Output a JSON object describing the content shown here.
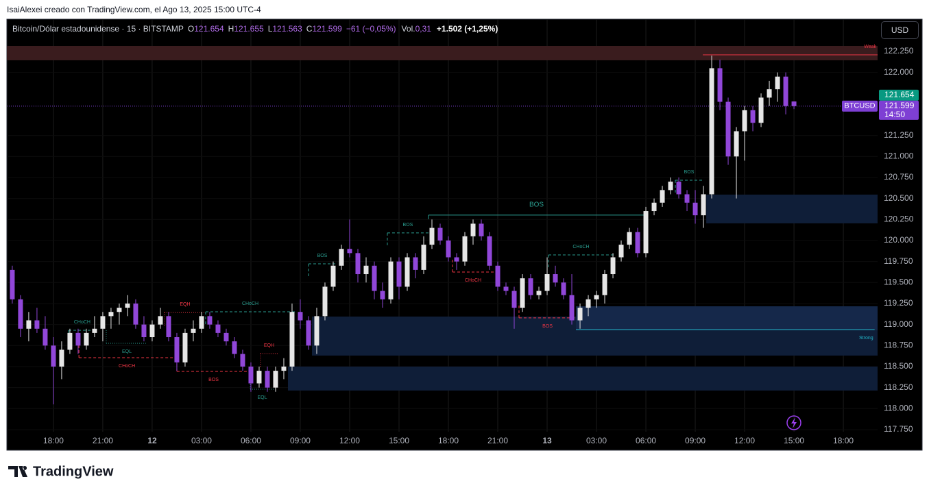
{
  "caption": "IsaiAlexei creado con TradingView.com, el Ago 13, 2025 15:00 UTC-4",
  "logo": "TradingView",
  "currency_button": "USD",
  "header": {
    "symbol": "Bitcoin/Dólar estadounidense · 15 · BITSTAMP",
    "open_label": "O",
    "open": "121.654",
    "high_label": "H",
    "high": "121.655",
    "low_label": "L",
    "low": "121.563",
    "close_label": "C",
    "close": "121.599",
    "change": "−61 (−0,05%)",
    "volume_label": "Vol.",
    "volume": "0,31",
    "indicator": "+1.502 (+1,25%)"
  },
  "chart_data": {
    "type": "candlestick",
    "up_color": "#e6e6e6",
    "down_color": "#9147d9",
    "x": [
      15.5,
      16,
      16.5,
      17,
      17.5,
      18,
      18.5,
      19,
      19.5,
      20,
      20.5,
      21,
      21.5,
      22,
      22.5,
      23,
      23.5,
      24,
      24.5,
      25,
      25.5,
      26,
      26.5,
      27,
      27.5,
      28,
      28.5,
      29,
      29.5,
      30,
      30.5,
      31,
      31.5,
      32,
      32.5,
      33,
      33.5,
      34,
      34.5,
      35,
      35.5,
      36,
      36.5,
      37,
      37.5,
      38,
      38.5,
      39,
      39.5,
      40,
      40.5,
      41,
      41.5,
      42,
      42.5,
      43,
      43.5,
      44,
      44.5,
      45,
      45.5,
      46,
      46.5,
      47,
      47.5,
      48,
      48.5,
      49,
      49.5,
      50,
      50.5,
      51,
      51.5,
      52,
      52.5,
      53,
      53.5,
      54,
      54.5,
      55,
      55.5,
      56,
      56.5,
      57,
      57.5,
      58,
      58.5,
      59,
      59.5,
      60,
      60.5,
      61,
      61.5,
      62,
      62.5,
      63
    ],
    "candles": [
      [
        119650,
        119700,
        119250,
        119300
      ],
      [
        119300,
        119350,
        118850,
        118950
      ],
      [
        118950,
        119150,
        118800,
        119050
      ],
      [
        119050,
        119200,
        118900,
        118950
      ],
      [
        118950,
        119100,
        118700,
        118750
      ],
      [
        118750,
        118850,
        118050,
        118500
      ],
      [
        118500,
        118800,
        118350,
        118700
      ],
      [
        118700,
        118950,
        118650,
        118900
      ],
      [
        118900,
        118950,
        118650,
        118750
      ],
      [
        118750,
        118950,
        118700,
        118900
      ],
      [
        118900,
        119100,
        118850,
        118950
      ],
      [
        118950,
        119150,
        118800,
        119100
      ],
      [
        119100,
        119200,
        118950,
        119150
      ],
      [
        119150,
        119250,
        119000,
        119200
      ],
      [
        119200,
        119350,
        119100,
        119250
      ],
      [
        119250,
        119300,
        118950,
        119000
      ],
      [
        119000,
        119100,
        118800,
        118850
      ],
      [
        118850,
        119050,
        118800,
        119000
      ],
      [
        119000,
        119200,
        118950,
        119100
      ],
      [
        119100,
        119150,
        118800,
        118850
      ],
      [
        118850,
        118900,
        118450,
        118550
      ],
      [
        118550,
        118950,
        118500,
        118900
      ],
      [
        118900,
        119050,
        118800,
        118950
      ],
      [
        118950,
        119150,
        118900,
        119100
      ],
      [
        119100,
        119150,
        118950,
        119000
      ],
      [
        119000,
        119050,
        118850,
        118900
      ],
      [
        118900,
        118950,
        118750,
        118800
      ],
      [
        118800,
        118850,
        118600,
        118650
      ],
      [
        118650,
        118700,
        118450,
        118500
      ],
      [
        118500,
        118550,
        118200,
        118300
      ],
      [
        118300,
        118500,
        118250,
        118450
      ],
      [
        118450,
        118500,
        118200,
        118250
      ],
      [
        118250,
        118500,
        118200,
        118450
      ],
      [
        118450,
        118600,
        118350,
        118500
      ],
      [
        118500,
        119250,
        118450,
        119150
      ],
      [
        119150,
        119300,
        118950,
        119050
      ],
      [
        119050,
        119100,
        118700,
        118750
      ],
      [
        118750,
        119200,
        118650,
        119100
      ],
      [
        119100,
        119500,
        119050,
        119450
      ],
      [
        119450,
        119750,
        119400,
        119700
      ],
      [
        119700,
        119950,
        119650,
        119900
      ],
      [
        119900,
        120250,
        119800,
        119850
      ],
      [
        119850,
        119900,
        119500,
        119600
      ],
      [
        119600,
        119800,
        119500,
        119700
      ],
      [
        119700,
        119750,
        119300,
        119400
      ],
      [
        119400,
        119500,
        119200,
        119300
      ],
      [
        119300,
        119800,
        119250,
        119750
      ],
      [
        119750,
        119800,
        119300,
        119450
      ],
      [
        119450,
        119850,
        119400,
        119800
      ],
      [
        119800,
        119850,
        119550,
        119650
      ],
      [
        119650,
        120050,
        119600,
        119950
      ],
      [
        119950,
        120250,
        119900,
        120150
      ],
      [
        120150,
        120200,
        119950,
        120000
      ],
      [
        120000,
        120050,
        119750,
        119800
      ],
      [
        119800,
        119850,
        119650,
        119750
      ],
      [
        119750,
        120100,
        119700,
        120050
      ],
      [
        120050,
        120250,
        119950,
        120200
      ],
      [
        120200,
        120250,
        120000,
        120050
      ],
      [
        120050,
        120100,
        119650,
        119700
      ],
      [
        119700,
        119750,
        119400,
        119450
      ],
      [
        119450,
        119500,
        119350,
        119400
      ],
      [
        119400,
        119450,
        118950,
        119200
      ],
      [
        119200,
        119600,
        119150,
        119550
      ],
      [
        119550,
        119600,
        119300,
        119350
      ],
      [
        119350,
        119450,
        119300,
        119400
      ],
      [
        119400,
        119800,
        119350,
        119600
      ],
      [
        119600,
        119700,
        119450,
        119500
      ],
      [
        119500,
        119550,
        119300,
        119350
      ],
      [
        119350,
        119600,
        119000,
        119050
      ],
      [
        119050,
        119250,
        118950,
        119200
      ],
      [
        119200,
        119350,
        119100,
        119300
      ],
      [
        119300,
        119400,
        119200,
        119350
      ],
      [
        119350,
        119650,
        119250,
        119600
      ],
      [
        119600,
        119850,
        119550,
        119800
      ],
      [
        119800,
        120000,
        119750,
        119950
      ],
      [
        119950,
        120150,
        119900,
        120100
      ],
      [
        120100,
        120150,
        119800,
        119850
      ],
      [
        119850,
        120400,
        119800,
        120350
      ],
      [
        120350,
        120500,
        120300,
        120450
      ],
      [
        120450,
        120650,
        120400,
        120600
      ],
      [
        120600,
        120750,
        120550,
        120700
      ],
      [
        120700,
        120750,
        120500,
        120550
      ],
      [
        120550,
        120600,
        120350,
        120450
      ],
      [
        120450,
        120600,
        120200,
        120300
      ],
      [
        120300,
        120650,
        120150,
        120550
      ],
      [
        120550,
        122200,
        120500,
        122050
      ],
      [
        122050,
        122150,
        121550,
        121650
      ],
      [
        121650,
        121700,
        120900,
        121000
      ],
      [
        121000,
        121350,
        120500,
        121300
      ],
      [
        121300,
        121600,
        120950,
        121550
      ],
      [
        121550,
        121600,
        121300,
        121400
      ],
      [
        121400,
        121750,
        121350,
        121700
      ],
      [
        121700,
        121900,
        121600,
        121800
      ],
      [
        121800,
        122000,
        121650,
        121950
      ],
      [
        121950,
        122000,
        121500,
        121600
      ],
      [
        121654,
        121655,
        121563,
        121599
      ]
    ],
    "xlim": [
      15.17,
      68.08
    ],
    "xticks": [
      {
        "value": 18,
        "label": "18:00"
      },
      {
        "value": 21,
        "label": "21:00"
      },
      {
        "value": 24,
        "label": "12"
      },
      {
        "value": 27,
        "label": "03:00"
      },
      {
        "value": 30,
        "label": "06:00"
      },
      {
        "value": 33,
        "label": "09:00"
      },
      {
        "value": 36,
        "label": "12:00"
      },
      {
        "value": 39,
        "label": "15:00"
      },
      {
        "value": 42,
        "label": "18:00"
      },
      {
        "value": 45,
        "label": "21:00"
      },
      {
        "value": 48,
        "label": "13"
      },
      {
        "value": 51,
        "label": "03:00"
      },
      {
        "value": 54,
        "label": "06:00"
      },
      {
        "value": 57,
        "label": "09:00"
      },
      {
        "value": 60,
        "label": "12:00"
      },
      {
        "value": 63,
        "label": "15:00"
      },
      {
        "value": 66,
        "label": "18:00"
      }
    ],
    "ylim": [
      117505,
      122633
    ],
    "yticks": [
      {
        "value": 122250,
        "label": "122.250"
      },
      {
        "value": 122000,
        "label": "122.000"
      },
      {
        "value": 121250,
        "label": "121.250"
      },
      {
        "value": 121000,
        "label": "121.000"
      },
      {
        "value": 120750,
        "label": "120.750"
      },
      {
        "value": 120500,
        "label": "120.500"
      },
      {
        "value": 120250,
        "label": "120.250"
      },
      {
        "value": 120000,
        "label": "120.000"
      },
      {
        "value": 119750,
        "label": "119.750"
      },
      {
        "value": 119500,
        "label": "119.500"
      },
      {
        "value": 119250,
        "label": "119.250"
      },
      {
        "value": 119000,
        "label": "119.000"
      },
      {
        "value": 118750,
        "label": "118.750"
      },
      {
        "value": 118500,
        "label": "118.500"
      },
      {
        "value": 118250,
        "label": "118.250"
      },
      {
        "value": 118000,
        "label": "118.000"
      },
      {
        "value": 117750,
        "label": "117.750"
      }
    ],
    "grid": true,
    "price_tags": [
      {
        "label": "121.654",
        "value": 121654,
        "color": "#089981"
      },
      {
        "label": "121.599",
        "value": 121599,
        "color": "#7e3fd4",
        "symbol": "BTCUSD",
        "countdown": "14:50"
      }
    ],
    "zones": [
      {
        "x": [
          15.17,
          68.08
        ],
        "y": [
          122144,
          122315
        ],
        "color": "#3a1c1e"
      },
      {
        "x": [
          57.67,
          68.08
        ],
        "y": [
          120204,
          120546
        ],
        "color": "#0f1e38"
      },
      {
        "x": [
          33.71,
          68.08
        ],
        "y": [
          118631,
          119095
        ],
        "color": "#0f1e38"
      },
      {
        "x": [
          49.75,
          68.08
        ],
        "y": [
          118932,
          119217
        ],
        "color": "#15284a"
      },
      {
        "x": [
          32.25,
          68.08
        ],
        "y": [
          118215,
          118500
        ],
        "color": "#0f1e38"
      }
    ],
    "levels": [
      {
        "label": "Weak",
        "x": [
          57.46,
          68.08
        ],
        "y": 122209,
        "color": "#f23645",
        "style": "solid",
        "label_pos": "above",
        "label_align": "end"
      },
      {
        "label": "Strong",
        "x": [
          49.75,
          67.9
        ],
        "y": 118940,
        "color": "#22b5c9",
        "style": "solid",
        "label_pos": "below",
        "label_align": "end"
      },
      {
        "label": "BOS",
        "x": [
          40.79,
          53.92
        ],
        "y": 120302,
        "color": "#2a9d8f",
        "style": "solid",
        "label_pos": "above",
        "label_align": "center"
      },
      {
        "label": "BOS",
        "x": [
          38.29,
          40.79
        ],
        "y": 120090,
        "color": "#2a9d8f",
        "style": "dashed",
        "label_pos": "above",
        "label_align": "center"
      },
      {
        "label": "BOS",
        "x": [
          33.5,
          35.17
        ],
        "y": 119723,
        "color": "#2a9d8f",
        "style": "dashed",
        "label_pos": "above",
        "label_align": "center"
      },
      {
        "label": "BOS",
        "x": [
          55.79,
          57.46
        ],
        "y": 120717,
        "color": "#2a9d8f",
        "style": "dashed",
        "label_pos": "above",
        "label_align": "center"
      },
      {
        "label": "CHoCH",
        "x": [
          48.08,
          52.04
        ],
        "y": 119829,
        "color": "#2a9d8f",
        "style": "dashed",
        "label_pos": "above",
        "label_align": "center"
      },
      {
        "label": "CHoCH",
        "x": [
          27.25,
          32.67
        ],
        "y": 119152,
        "color": "#2a9d8f",
        "style": "dashed",
        "label_pos": "above",
        "label_align": "center"
      },
      {
        "label": "CHoCH",
        "x": [
          18.92,
          20.58
        ],
        "y": 118932,
        "color": "#2a9d8f",
        "style": "dashed",
        "label_pos": "above",
        "label_align": "center"
      },
      {
        "label": "EQH",
        "x": [
          24.75,
          27.25
        ],
        "y": 119144,
        "color": "#f23645",
        "style": "dotted",
        "label_pos": "above",
        "label_align": "center"
      },
      {
        "label": "EQH",
        "x": [
          30.58,
          31.63
        ],
        "y": 118655,
        "color": "#f23645",
        "style": "dotted",
        "label_pos": "above",
        "label_align": "center"
      },
      {
        "label": "EQL",
        "x": [
          21.21,
          23.71
        ],
        "y": 118777,
        "color": "#2a9d8f",
        "style": "dotted",
        "label_pos": "below",
        "label_align": "center"
      },
      {
        "label": "EQL",
        "x": [
          29.96,
          31.42
        ],
        "y": 118231,
        "color": "#2a9d8f",
        "style": "dotted",
        "label_pos": "below",
        "label_align": "center"
      },
      {
        "label": "CHoCH",
        "x": [
          19.55,
          25.38
        ],
        "y": 118606,
        "color": "#f23645",
        "style": "dashed",
        "label_pos": "below",
        "label_align": "center"
      },
      {
        "label": "BOS",
        "x": [
          25.5,
          29.96
        ],
        "y": 118443,
        "color": "#f23645",
        "style": "dashed",
        "label_pos": "below",
        "label_align": "center"
      },
      {
        "label": "CHoCH",
        "x": [
          42.25,
          44.75
        ],
        "y": 119625,
        "color": "#f23645",
        "style": "dashed",
        "label_pos": "below",
        "label_align": "center"
      },
      {
        "label": "BOS",
        "x": [
          46.29,
          49.75
        ],
        "y": 119079,
        "color": "#f23645",
        "style": "dashed",
        "label_pos": "below",
        "label_align": "center"
      }
    ]
  }
}
